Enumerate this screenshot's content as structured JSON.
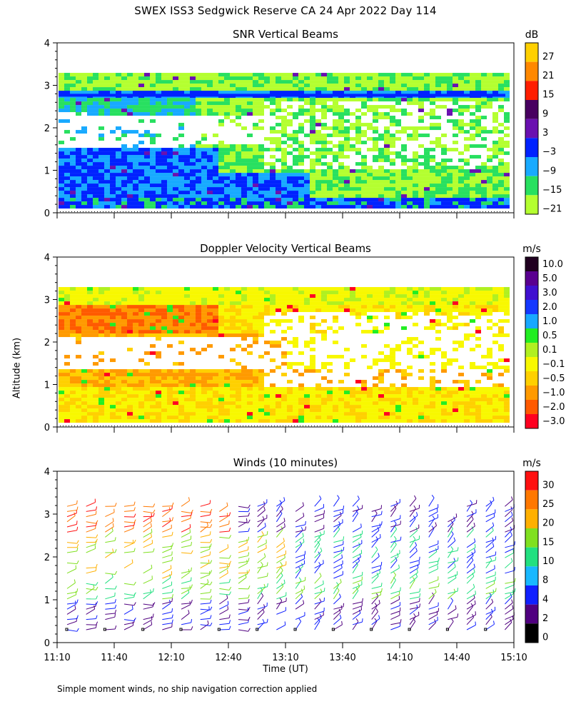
{
  "page": {
    "title": "SWEX ISS3 Sedgwick Reserve CA  24 Apr 2022 Day 114",
    "y_axis_label": "Altitude (km)",
    "x_axis_label": "Time (UT)",
    "footnote": "Simple moment winds, no ship navigation correction applied"
  },
  "chart_data": [
    {
      "type": "heatmap",
      "title": "SNR Vertical Beams",
      "units": "dB",
      "ylim": [
        0,
        4
      ],
      "yticks": [
        "0",
        "1",
        "2",
        "3",
        "4"
      ],
      "colorbar_labels": [
        "27",
        "21",
        "15",
        "9",
        "3",
        "−3",
        "−9",
        "−15",
        "−21"
      ],
      "colors": [
        "#ffd000",
        "#ff8800",
        "#ff1e00",
        "#480060",
        "#6a10b0",
        "#0022ff",
        "#18aaff",
        "#28e060",
        "#b4ff30"
      ]
    },
    {
      "type": "heatmap",
      "title": "Doppler Velocity Vertical Beams",
      "units": "m/s",
      "ylim": [
        0,
        4
      ],
      "yticks": [
        "0",
        "1",
        "2",
        "3",
        "4"
      ],
      "colorbar_labels": [
        "10.0",
        "5.0",
        "3.0",
        "2.0",
        "1.0",
        "0.5",
        "0.1",
        "−0.1",
        "−0.5",
        "−1.0",
        "−2.0",
        "−3.0"
      ],
      "colors": [
        "#200020",
        "#5a0090",
        "#4010d0",
        "#1438ff",
        "#18a8ff",
        "#22ee22",
        "#b0f020",
        "#f8f800",
        "#ffd000",
        "#ff9a00",
        "#ff5a00",
        "#ff0020"
      ]
    },
    {
      "type": "wind_barbs",
      "title": "Winds (10 minutes)",
      "units": "m/s",
      "ylim": [
        0,
        4
      ],
      "yticks": [
        "0",
        "1",
        "2",
        "3",
        "4"
      ],
      "colorbar_labels": [
        "30",
        "25",
        "20",
        "15",
        "10",
        "8",
        "4",
        "2",
        "0"
      ],
      "colors": [
        "#ff1010",
        "#ff7800",
        "#ffb000",
        "#80e020",
        "#22e080",
        "#18b8ff",
        "#1020ff",
        "#500080",
        "#000000"
      ],
      "xticks": [
        "11:10",
        "11:40",
        "12:10",
        "12:40",
        "13:10",
        "13:40",
        "14:10",
        "14:40",
        "15:10"
      ]
    }
  ]
}
